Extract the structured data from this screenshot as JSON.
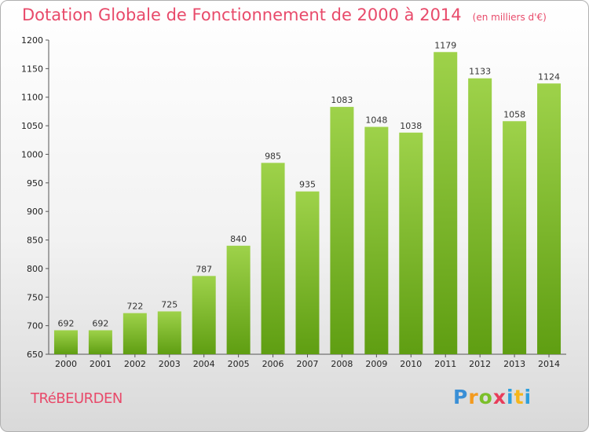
{
  "header": {
    "title": "Dotation Globale de Fonctionnement de 2000 à 2014",
    "unit": "(en milliers d'€)"
  },
  "footer": {
    "commune": "TRéBEURDEN",
    "logo": [
      "P",
      "r",
      "o",
      "x",
      "i",
      "t",
      "i"
    ]
  },
  "colors": {
    "bar_top": "#9ed24a",
    "bar_bottom": "#5f9e12",
    "title": "#e84a6a"
  },
  "chart_data": {
    "type": "bar",
    "categories": [
      "2000",
      "2001",
      "2002",
      "2003",
      "2004",
      "2005",
      "2006",
      "2007",
      "2008",
      "2009",
      "2010",
      "2011",
      "2012",
      "2013",
      "2014"
    ],
    "values": [
      692,
      692,
      722,
      725,
      787,
      840,
      985,
      935,
      1083,
      1048,
      1038,
      1179,
      1133,
      1058,
      1124
    ],
    "title": "Dotation Globale de Fonctionnement de 2000 à 2014",
    "ylim": [
      650,
      1200
    ],
    "yticks": [
      650,
      700,
      750,
      800,
      850,
      900,
      950,
      1000,
      1050,
      1100,
      1150,
      1200
    ],
    "grid": false,
    "legend": "none"
  }
}
